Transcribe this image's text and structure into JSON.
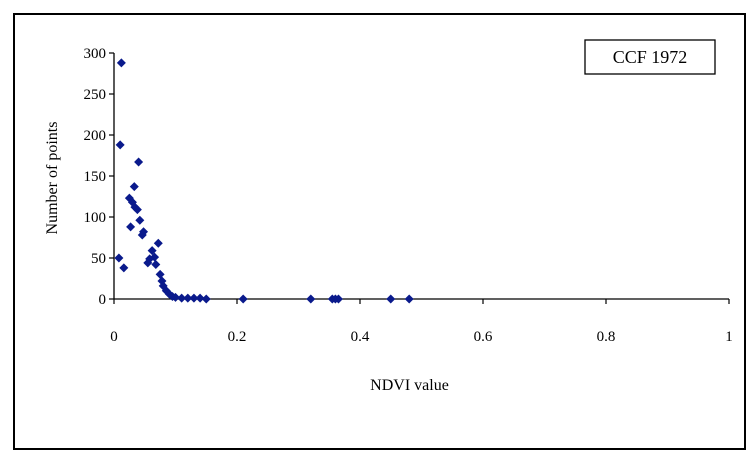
{
  "chart_data": {
    "type": "scatter",
    "title": "",
    "legend_label": "CCF 1972",
    "legend_position": "top-right",
    "xlabel": "NDVI value",
    "ylabel": "Number of points",
    "xlim": [
      0,
      1
    ],
    "ylim": [
      0,
      300
    ],
    "xticks": [
      "0",
      "0.2",
      "0.4",
      "0.6",
      "0.8",
      "1"
    ],
    "yticks": [
      "0",
      "50",
      "100",
      "150",
      "200",
      "250",
      "300"
    ],
    "grid": false,
    "marker": "diamond",
    "marker_color": "#0a1a8c",
    "points": [
      {
        "x": 0.012,
        "y": 288
      },
      {
        "x": 0.01,
        "y": 188
      },
      {
        "x": 0.04,
        "y": 167
      },
      {
        "x": 0.033,
        "y": 137
      },
      {
        "x": 0.025,
        "y": 123
      },
      {
        "x": 0.03,
        "y": 118
      },
      {
        "x": 0.034,
        "y": 112
      },
      {
        "x": 0.038,
        "y": 109
      },
      {
        "x": 0.042,
        "y": 96
      },
      {
        "x": 0.027,
        "y": 88
      },
      {
        "x": 0.048,
        "y": 82
      },
      {
        "x": 0.046,
        "y": 78
      },
      {
        "x": 0.072,
        "y": 68
      },
      {
        "x": 0.062,
        "y": 59
      },
      {
        "x": 0.066,
        "y": 51
      },
      {
        "x": 0.008,
        "y": 50
      },
      {
        "x": 0.058,
        "y": 49
      },
      {
        "x": 0.055,
        "y": 44
      },
      {
        "x": 0.068,
        "y": 42
      },
      {
        "x": 0.016,
        "y": 38
      },
      {
        "x": 0.075,
        "y": 30
      },
      {
        "x": 0.078,
        "y": 22
      },
      {
        "x": 0.08,
        "y": 16
      },
      {
        "x": 0.085,
        "y": 10
      },
      {
        "x": 0.09,
        "y": 6
      },
      {
        "x": 0.095,
        "y": 3
      },
      {
        "x": 0.1,
        "y": 2
      },
      {
        "x": 0.11,
        "y": 1
      },
      {
        "x": 0.12,
        "y": 1
      },
      {
        "x": 0.13,
        "y": 1
      },
      {
        "x": 0.14,
        "y": 1
      },
      {
        "x": 0.15,
        "y": 0
      },
      {
        "x": 0.21,
        "y": 0
      },
      {
        "x": 0.32,
        "y": 0
      },
      {
        "x": 0.355,
        "y": 0
      },
      {
        "x": 0.36,
        "y": 0
      },
      {
        "x": 0.365,
        "y": 0
      },
      {
        "x": 0.45,
        "y": 0
      },
      {
        "x": 0.48,
        "y": 0
      }
    ]
  }
}
